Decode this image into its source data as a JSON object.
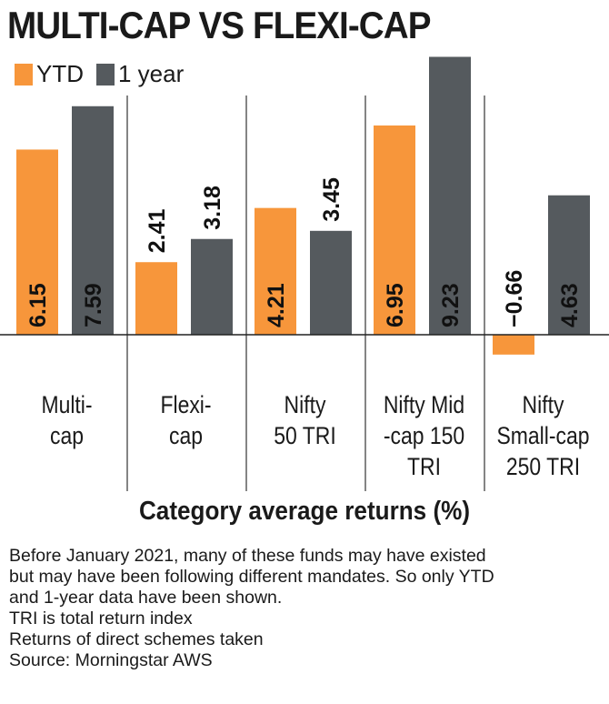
{
  "title": "MULTI-CAP VS FLEXI-CAP",
  "legend": [
    {
      "label": "YTD",
      "color": "#f7963b"
    },
    {
      "label": "1 year",
      "color": "#555a5e"
    }
  ],
  "chart_data": {
    "type": "bar",
    "categories": [
      "Multi-\ncap",
      "Flexi-\ncap",
      "Nifty\n50 TRI",
      "Nifty Mid\n-cap 150\nTRI",
      "Nifty\nSmall-cap\n250 TRI"
    ],
    "series": [
      {
        "name": "YTD",
        "values": [
          6.15,
          2.41,
          4.21,
          6.95,
          -0.66
        ],
        "labels": [
          "6.15",
          "2.41",
          "4.21",
          "6.95",
          "−0.66"
        ],
        "color": "#f7963b"
      },
      {
        "name": "1 year",
        "values": [
          7.59,
          3.18,
          3.45,
          9.23,
          4.63
        ],
        "labels": [
          "7.59",
          "3.18",
          "3.45",
          "9.23",
          "4.63"
        ],
        "color": "#555a5e"
      }
    ],
    "xlabel": "Category average returns (%)",
    "ylabel": "",
    "ylim": [
      -0.66,
      9.23
    ]
  },
  "notes": [
    "Before January 2021, many of these funds may have existed",
    "but may have been following different mandates. So only YTD",
    "and 1-year data have been shown.",
    "TRI is total return index",
    "Returns of direct schemes taken",
    "Source: Morningstar AWS"
  ]
}
